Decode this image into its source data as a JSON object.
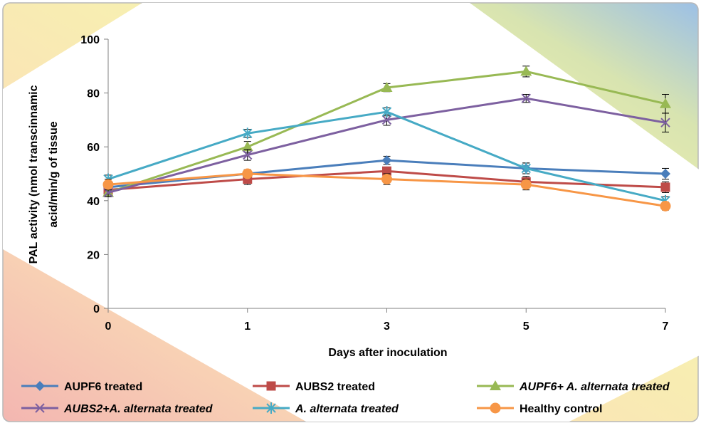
{
  "chart_data": {
    "type": "line",
    "title": "",
    "xlabel": "Days after inoculation",
    "ylabel_line1": "PAL activity (nmol transcinnamic",
    "ylabel_line2": "acid/min/g of tissue",
    "categories": [
      "0",
      "1",
      "3",
      "5",
      "7"
    ],
    "ylim": [
      0,
      100
    ],
    "yticks": [
      "0",
      "20",
      "40",
      "60",
      "80",
      "100"
    ],
    "grid": false,
    "legend_position": "bottom",
    "series": [
      {
        "name": "AUPF6 treated",
        "italic": false,
        "color": "#4a7ebb",
        "marker": "diamond",
        "values": [
          45,
          50,
          55,
          52,
          50
        ],
        "errors": [
          1.5,
          1.5,
          1.5,
          2,
          2
        ]
      },
      {
        "name": "AUBS2 treated",
        "italic": false,
        "color": "#be4b48",
        "marker": "square",
        "values": [
          44,
          48,
          51,
          47,
          45
        ],
        "errors": [
          1.5,
          2,
          1.5,
          2,
          2
        ]
      },
      {
        "name": "AUPF6+ A. alternata treated",
        "italic": true,
        "color": "#98b954",
        "marker": "triangle",
        "values": [
          43,
          60,
          82,
          88,
          76
        ],
        "errors": [
          1.5,
          2,
          1.5,
          2,
          3.5
        ]
      },
      {
        "name": "AUBS2+A. alternata treated",
        "italic": true,
        "color": "#7d60a0",
        "marker": "x",
        "values": [
          43,
          57,
          70,
          78,
          69
        ],
        "errors": [
          1.5,
          2,
          2,
          1.5,
          3.5
        ]
      },
      {
        "name": "A. alternata treated",
        "italic": true,
        "color": "#46aac5",
        "marker": "star",
        "values": [
          48,
          65,
          73,
          52,
          40
        ],
        "errors": [
          1.5,
          1.5,
          1.5,
          2,
          1.5
        ]
      },
      {
        "name": "Healthy control",
        "italic": false,
        "color": "#f79646",
        "marker": "circle",
        "values": [
          46,
          50,
          48,
          46,
          38
        ],
        "errors": [
          2,
          1.5,
          2,
          2,
          1.5
        ]
      }
    ]
  }
}
